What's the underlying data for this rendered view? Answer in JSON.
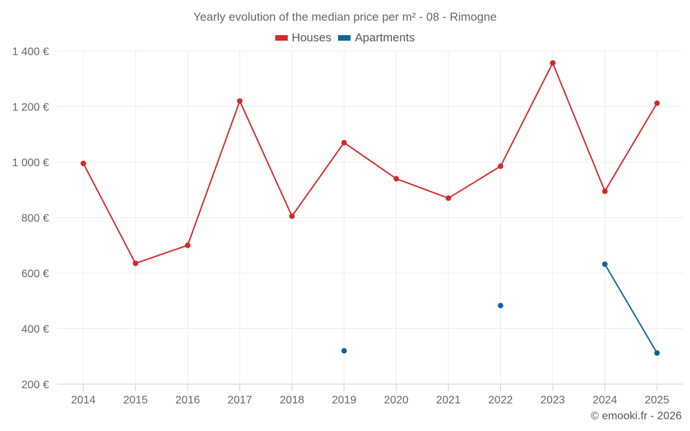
{
  "chart_data": {
    "type": "line",
    "title": "Yearly evolution of the median price per m² - 08 - Rimogne",
    "categories": [
      "2014",
      "2015",
      "2016",
      "2017",
      "2018",
      "2019",
      "2020",
      "2021",
      "2022",
      "2023",
      "2024",
      "2025"
    ],
    "ylim": [
      200,
      1400
    ],
    "yticks": [
      200,
      400,
      600,
      800,
      1000,
      1200,
      1400
    ],
    "ytick_labels": [
      "200 €",
      "400 €",
      "600 €",
      "800 €",
      "1 000 €",
      "1 200 €",
      "1 400 €"
    ],
    "grid": true,
    "legend_position": "top-center",
    "series": [
      {
        "name": "Houses",
        "color": "#d42a2a",
        "values": [
          995,
          635,
          700,
          1220,
          805,
          1070,
          940,
          870,
          985,
          1357,
          895,
          1212
        ]
      },
      {
        "name": "Apartments",
        "color": "#0e6699",
        "values": [
          null,
          null,
          null,
          null,
          null,
          320,
          null,
          null,
          483,
          null,
          632,
          312
        ]
      }
    ]
  },
  "credit": "© emooki.fr - 2026"
}
